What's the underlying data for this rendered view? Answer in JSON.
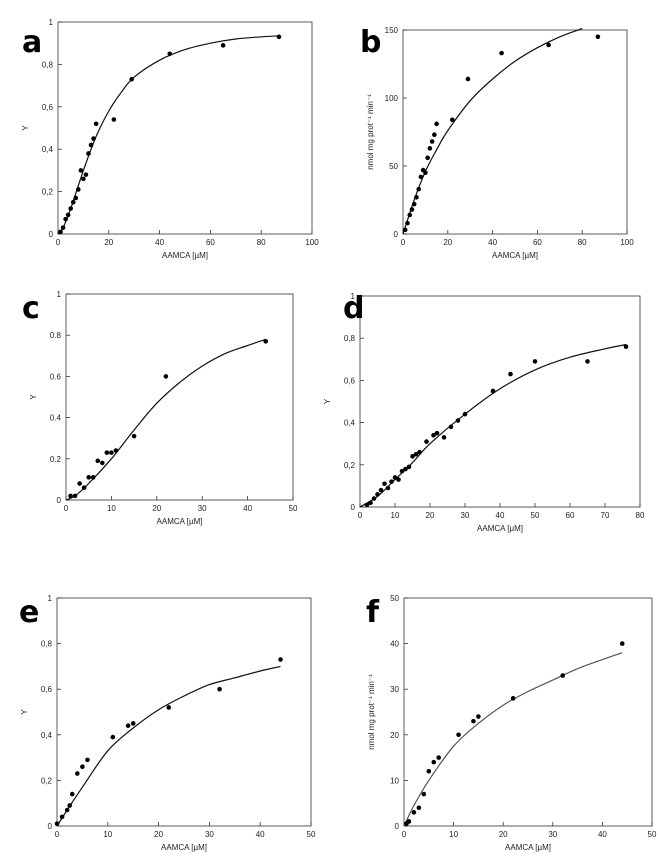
{
  "chart_data": [
    {
      "panel": "a",
      "type": "scatter",
      "xlabel": "AAMCA [µM]",
      "ylabel": "Y",
      "xlim": [
        0,
        100
      ],
      "ylim": [
        0,
        1
      ],
      "xticks": [
        0,
        20,
        40,
        60,
        80,
        100
      ],
      "yticks": [
        0,
        0.2,
        0.4,
        0.6,
        0.8,
        1
      ],
      "ytick_labels": [
        "0",
        "0,2",
        "0,4",
        "0,6",
        "0,8",
        "1"
      ],
      "points": [
        [
          1,
          0.01
        ],
        [
          2,
          0.03
        ],
        [
          3,
          0.07
        ],
        [
          4,
          0.09
        ],
        [
          5,
          0.12
        ],
        [
          6,
          0.15
        ],
        [
          7,
          0.17
        ],
        [
          8,
          0.21
        ],
        [
          9,
          0.3
        ],
        [
          10,
          0.26
        ],
        [
          11,
          0.28
        ],
        [
          12,
          0.38
        ],
        [
          13,
          0.42
        ],
        [
          14,
          0.45
        ],
        [
          15,
          0.52
        ],
        [
          22,
          0.54
        ],
        [
          29,
          0.73
        ],
        [
          44,
          0.85
        ],
        [
          65,
          0.89
        ],
        [
          87,
          0.93
        ]
      ],
      "fit": [
        [
          0,
          0
        ],
        [
          2,
          0.03
        ],
        [
          5,
          0.12
        ],
        [
          10,
          0.3
        ],
        [
          15,
          0.46
        ],
        [
          20,
          0.58
        ],
        [
          25,
          0.67
        ],
        [
          30,
          0.74
        ],
        [
          40,
          0.82
        ],
        [
          50,
          0.87
        ],
        [
          60,
          0.9
        ],
        [
          70,
          0.92
        ],
        [
          80,
          0.93
        ],
        [
          87,
          0.935
        ]
      ]
    },
    {
      "panel": "b",
      "type": "scatter",
      "xlabel": "AAMCA [µM]",
      "ylabel": "nmol mg prot⁻¹ min⁻¹",
      "xlim": [
        0,
        100
      ],
      "ylim": [
        0,
        150
      ],
      "xticks": [
        0,
        20,
        40,
        60,
        80,
        100
      ],
      "yticks": [
        0,
        50,
        100,
        150
      ],
      "ytick_labels": [
        "0",
        "50",
        "100",
        "150"
      ],
      "points": [
        [
          1,
          3
        ],
        [
          2,
          8
        ],
        [
          3,
          14
        ],
        [
          4,
          18
        ],
        [
          5,
          22
        ],
        [
          6,
          27
        ],
        [
          7,
          33
        ],
        [
          8,
          42
        ],
        [
          9,
          47
        ],
        [
          10,
          45
        ],
        [
          11,
          56
        ],
        [
          12,
          63
        ],
        [
          13,
          68
        ],
        [
          14,
          73
        ],
        [
          15,
          81
        ],
        [
          22,
          84
        ],
        [
          29,
          114
        ],
        [
          44,
          133
        ],
        [
          65,
          139
        ],
        [
          87,
          145
        ]
      ],
      "fit": [
        [
          0,
          0
        ],
        [
          5,
          25
        ],
        [
          10,
          46
        ],
        [
          15,
          62
        ],
        [
          20,
          76
        ],
        [
          30,
          98
        ],
        [
          40,
          114
        ],
        [
          50,
          127
        ],
        [
          60,
          137
        ],
        [
          70,
          145
        ],
        [
          80,
          151
        ]
      ]
    },
    {
      "panel": "c",
      "type": "scatter",
      "xlabel": "AAMCA [µM]",
      "ylabel": "Y",
      "xlim": [
        0,
        50
      ],
      "ylim": [
        0,
        1
      ],
      "xticks": [
        0,
        10,
        20,
        30,
        40,
        50
      ],
      "yticks": [
        0,
        0.2,
        0.4,
        0.6,
        0.8,
        1
      ],
      "ytick_labels": [
        "0",
        "0.2",
        "0.4",
        "0.6",
        "0.8",
        "1"
      ],
      "points": [
        [
          1,
          0.02
        ],
        [
          2,
          0.02
        ],
        [
          3,
          0.08
        ],
        [
          4,
          0.06
        ],
        [
          5,
          0.11
        ],
        [
          6,
          0.11
        ],
        [
          7,
          0.19
        ],
        [
          8,
          0.18
        ],
        [
          9,
          0.23
        ],
        [
          10,
          0.23
        ],
        [
          11,
          0.24
        ],
        [
          15,
          0.31
        ],
        [
          22,
          0.6
        ],
        [
          44,
          0.77
        ]
      ],
      "fit": [
        [
          0,
          0
        ],
        [
          2,
          0.02
        ],
        [
          5,
          0.08
        ],
        [
          10,
          0.2
        ],
        [
          15,
          0.34
        ],
        [
          20,
          0.47
        ],
        [
          25,
          0.57
        ],
        [
          30,
          0.65
        ],
        [
          35,
          0.71
        ],
        [
          40,
          0.75
        ],
        [
          44,
          0.78
        ]
      ]
    },
    {
      "panel": "d",
      "type": "scatter",
      "xlabel": "AAMCA [µM]",
      "ylabel": "Y",
      "xlim": [
        0,
        80
      ],
      "ylim": [
        0,
        1
      ],
      "xticks": [
        0,
        10,
        20,
        30,
        40,
        50,
        60,
        70,
        80
      ],
      "yticks": [
        0,
        0.2,
        0.4,
        0.6,
        0.8,
        1
      ],
      "ytick_labels": [
        "0",
        "0,2",
        "0,4",
        "0,6",
        "0,8",
        "1"
      ],
      "points": [
        [
          2,
          0.01
        ],
        [
          3,
          0.02
        ],
        [
          4,
          0.04
        ],
        [
          5,
          0.06
        ],
        [
          6,
          0.08
        ],
        [
          7,
          0.11
        ],
        [
          8,
          0.09
        ],
        [
          9,
          0.12
        ],
        [
          10,
          0.14
        ],
        [
          11,
          0.13
        ],
        [
          12,
          0.17
        ],
        [
          13,
          0.18
        ],
        [
          14,
          0.19
        ],
        [
          15,
          0.24
        ],
        [
          16,
          0.25
        ],
        [
          17,
          0.26
        ],
        [
          19,
          0.31
        ],
        [
          21,
          0.34
        ],
        [
          22,
          0.35
        ],
        [
          24,
          0.33
        ],
        [
          26,
          0.38
        ],
        [
          28,
          0.41
        ],
        [
          30,
          0.44
        ],
        [
          38,
          0.55
        ],
        [
          43,
          0.63
        ],
        [
          50,
          0.69
        ],
        [
          65,
          0.69
        ],
        [
          76,
          0.76
        ]
      ],
      "fit": [
        [
          0,
          0
        ],
        [
          5,
          0.05
        ],
        [
          10,
          0.13
        ],
        [
          15,
          0.21
        ],
        [
          20,
          0.3
        ],
        [
          30,
          0.44
        ],
        [
          40,
          0.56
        ],
        [
          50,
          0.65
        ],
        [
          60,
          0.71
        ],
        [
          70,
          0.75
        ],
        [
          76,
          0.77
        ]
      ]
    },
    {
      "panel": "e",
      "type": "scatter",
      "xlabel": "AAMCA [µM]",
      "ylabel": "Y",
      "xlim": [
        0,
        50
      ],
      "ylim": [
        0,
        1
      ],
      "xticks": [
        0,
        10,
        20,
        30,
        40,
        50
      ],
      "yticks": [
        0,
        0.2,
        0.4,
        0.6,
        0.8,
        1
      ],
      "ytick_labels": [
        "0",
        "0,2",
        "0,4",
        "0,6",
        "0,8",
        "1"
      ],
      "points": [
        [
          0,
          0.01
        ],
        [
          1,
          0.04
        ],
        [
          2,
          0.07
        ],
        [
          2.5,
          0.09
        ],
        [
          3,
          0.14
        ],
        [
          4,
          0.23
        ],
        [
          5,
          0.26
        ],
        [
          6,
          0.29
        ],
        [
          11,
          0.39
        ],
        [
          14,
          0.44
        ],
        [
          15,
          0.45
        ],
        [
          22,
          0.52
        ],
        [
          32,
          0.6
        ],
        [
          44,
          0.73
        ]
      ],
      "fit": [
        [
          0,
          0
        ],
        [
          2,
          0.07
        ],
        [
          5,
          0.17
        ],
        [
          10,
          0.33
        ],
        [
          15,
          0.43
        ],
        [
          20,
          0.51
        ],
        [
          25,
          0.57
        ],
        [
          30,
          0.62
        ],
        [
          35,
          0.65
        ],
        [
          40,
          0.68
        ],
        [
          44,
          0.7
        ]
      ]
    },
    {
      "panel": "f",
      "type": "scatter",
      "xlabel": "AAMCA [µM]",
      "ylabel": "nmol mg prot⁻¹ min⁻¹",
      "xlim": [
        0,
        50
      ],
      "ylim": [
        0,
        50
      ],
      "xticks": [
        0,
        10,
        20,
        30,
        40,
        50
      ],
      "yticks": [
        0,
        10,
        20,
        30,
        40,
        50
      ],
      "ytick_labels": [
        "0",
        "10",
        "20",
        "30",
        "40",
        "50"
      ],
      "points": [
        [
          0.5,
          0.5
        ],
        [
          1,
          1
        ],
        [
          2,
          3
        ],
        [
          3,
          4
        ],
        [
          4,
          7
        ],
        [
          5,
          12
        ],
        [
          6,
          14
        ],
        [
          7,
          15
        ],
        [
          11,
          20
        ],
        [
          14,
          23
        ],
        [
          15,
          24
        ],
        [
          22,
          28
        ],
        [
          32,
          33
        ],
        [
          44,
          40
        ]
      ],
      "fit": [
        [
          0,
          0
        ],
        [
          2,
          4.5
        ],
        [
          5,
          10
        ],
        [
          10,
          17.5
        ],
        [
          15,
          22.5
        ],
        [
          20,
          26.5
        ],
        [
          25,
          29.5
        ],
        [
          30,
          32
        ],
        [
          35,
          34.5
        ],
        [
          40,
          36.5
        ],
        [
          44,
          38
        ]
      ]
    }
  ]
}
